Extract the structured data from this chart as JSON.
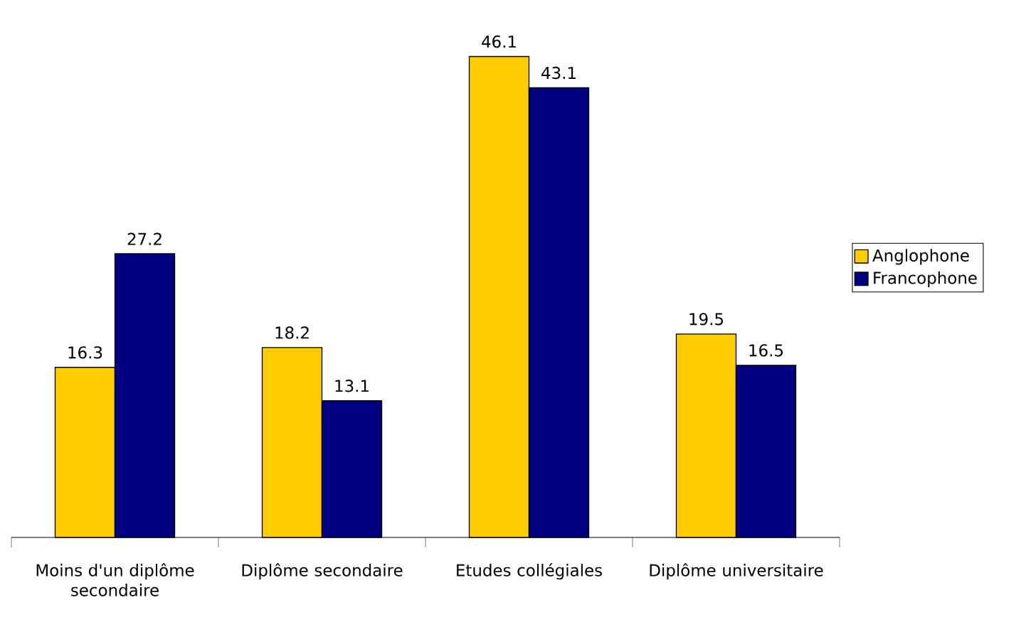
{
  "chart_data": {
    "type": "bar",
    "categories": [
      "Moins d'un diplôme secondaire",
      "Diplôme secondaire",
      "Etudes collégiales",
      "Diplôme universitaire"
    ],
    "series": [
      {
        "name": "Anglophone",
        "color": "#ffcc00",
        "values": [
          16.3,
          18.2,
          46.1,
          19.5
        ]
      },
      {
        "name": "Francophone",
        "color": "#000080",
        "values": [
          27.2,
          13.1,
          43.1,
          16.5
        ]
      }
    ],
    "data_labels": true,
    "legend": "right"
  }
}
